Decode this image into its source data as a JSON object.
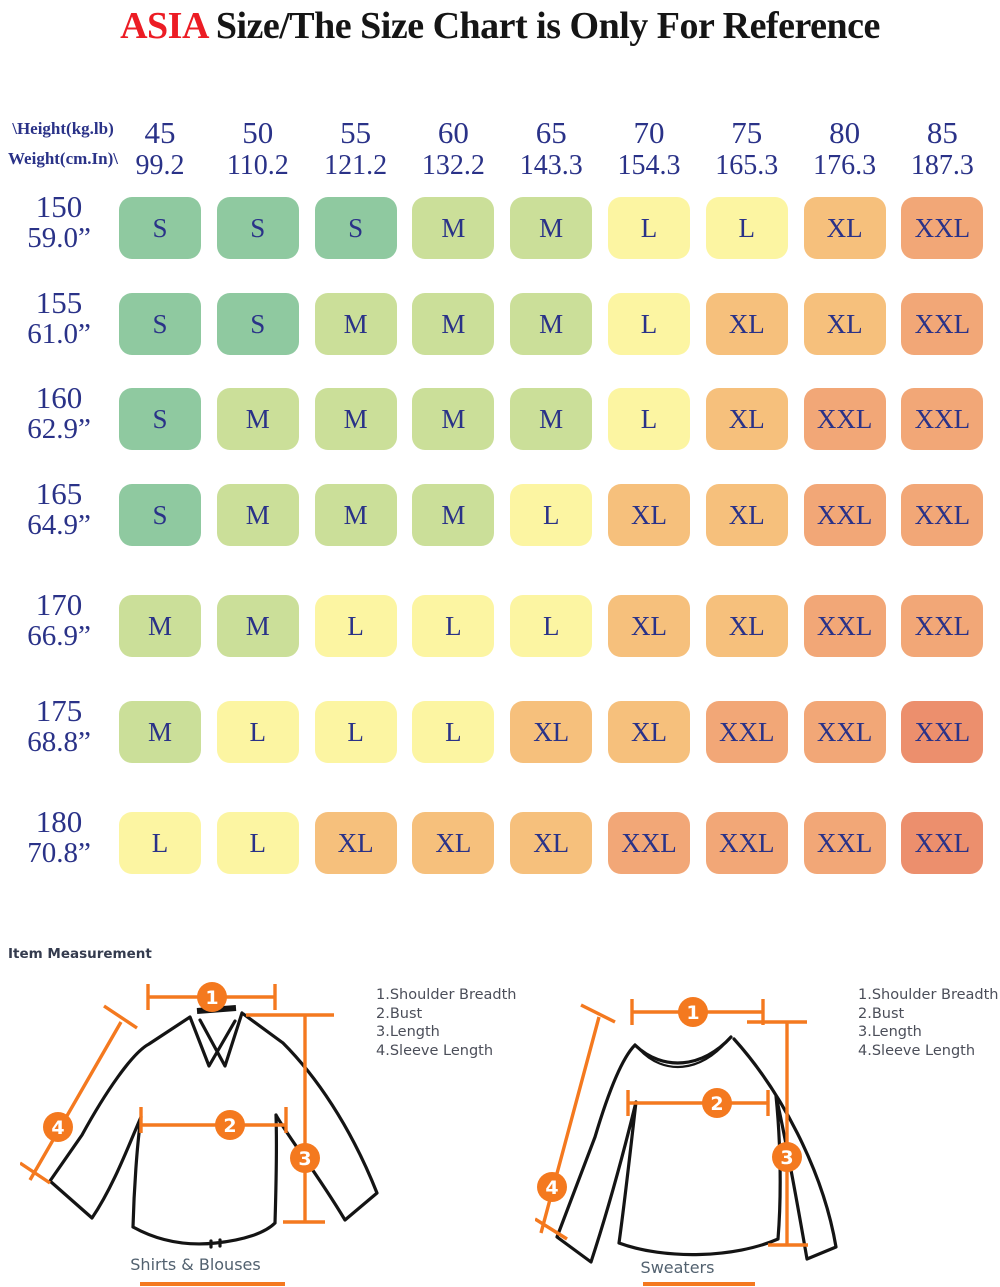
{
  "title": {
    "accent": "ASIA",
    "rest": " Size/The Size Chart is Only For Reference"
  },
  "chart_data": {
    "type": "table",
    "title": "ASIA Size/The Size Chart is Only For Reference",
    "corner_label_line1": "\\Height(kg.lb)",
    "corner_label_line2": "Weight(cm.In)\\",
    "columns": [
      {
        "kg": "45",
        "lb": "99.2"
      },
      {
        "kg": "50",
        "lb": "110.2"
      },
      {
        "kg": "55",
        "lb": "121.2"
      },
      {
        "kg": "60",
        "lb": "132.2"
      },
      {
        "kg": "65",
        "lb": "143.3"
      },
      {
        "kg": "70",
        "lb": "154.3"
      },
      {
        "kg": "75",
        "lb": "165.3"
      },
      {
        "kg": "80",
        "lb": "176.3"
      },
      {
        "kg": "85",
        "lb": "187.3"
      }
    ],
    "rows": [
      {
        "cm": "150",
        "inch": "59.0”",
        "cells": [
          [
            "S",
            "s"
          ],
          [
            "S",
            "s"
          ],
          [
            "S",
            "s"
          ],
          [
            "M",
            "m"
          ],
          [
            "M",
            "m"
          ],
          [
            "L",
            "l"
          ],
          [
            "L",
            "l"
          ],
          [
            "XL",
            "xl"
          ],
          [
            "XXL",
            "xxl"
          ]
        ]
      },
      {
        "cm": "155",
        "inch": "61.0”",
        "cells": [
          [
            "S",
            "s"
          ],
          [
            "S",
            "s"
          ],
          [
            "M",
            "m"
          ],
          [
            "M",
            "m"
          ],
          [
            "M",
            "m"
          ],
          [
            "L",
            "l"
          ],
          [
            "XL",
            "xl"
          ],
          [
            "XL",
            "xl"
          ],
          [
            "XXL",
            "xxl"
          ]
        ]
      },
      {
        "cm": "160",
        "inch": "62.9”",
        "cells": [
          [
            "S",
            "s"
          ],
          [
            "M",
            "m"
          ],
          [
            "M",
            "m"
          ],
          [
            "M",
            "m"
          ],
          [
            "M",
            "m"
          ],
          [
            "L",
            "l"
          ],
          [
            "XL",
            "xl"
          ],
          [
            "XXL",
            "xxl"
          ],
          [
            "XXL",
            "xxl"
          ]
        ]
      },
      {
        "cm": "165",
        "inch": "64.9”",
        "cells": [
          [
            "S",
            "s"
          ],
          [
            "M",
            "m"
          ],
          [
            "M",
            "m"
          ],
          [
            "M",
            "m"
          ],
          [
            "L",
            "l"
          ],
          [
            "XL",
            "xl"
          ],
          [
            "XL",
            "xl"
          ],
          [
            "XXL",
            "xxl"
          ],
          [
            "XXL",
            "xxl"
          ]
        ]
      },
      {
        "cm": "170",
        "inch": "66.9”",
        "cells": [
          [
            "M",
            "m"
          ],
          [
            "M",
            "m"
          ],
          [
            "L",
            "l"
          ],
          [
            "L",
            "l"
          ],
          [
            "L",
            "l"
          ],
          [
            "XL",
            "xl"
          ],
          [
            "XL",
            "xl"
          ],
          [
            "XXL",
            "xxl"
          ],
          [
            "XXL",
            "xxl"
          ]
        ]
      },
      {
        "cm": "175",
        "inch": "68.8”",
        "cells": [
          [
            "M",
            "m"
          ],
          [
            "L",
            "l"
          ],
          [
            "L",
            "l"
          ],
          [
            "L",
            "l"
          ],
          [
            "XL",
            "xl"
          ],
          [
            "XL",
            "xl"
          ],
          [
            "XXL",
            "xxl"
          ],
          [
            "XXL",
            "xxl"
          ],
          [
            "XXL",
            "xxl2"
          ]
        ]
      },
      {
        "cm": "180",
        "inch": "70.8”",
        "cells": [
          [
            "L",
            "l"
          ],
          [
            "L",
            "l"
          ],
          [
            "XL",
            "xl"
          ],
          [
            "XL",
            "xl"
          ],
          [
            "XL",
            "xl"
          ],
          [
            "XXL",
            "xxl"
          ],
          [
            "XXL",
            "xxl"
          ],
          [
            "XXL",
            "xxl"
          ],
          [
            "XXL",
            "xxl2"
          ]
        ]
      }
    ],
    "palette": {
      "s": "#8fc9a0",
      "m": "#cbdf99",
      "l": "#fcf5a2",
      "xl": "#f6c07c",
      "xxl": "#f2a777",
      "xxl2": "#ec8f6d"
    },
    "text_color": "#2a3288",
    "accent_red": "#ec1c24"
  },
  "measurement": {
    "heading": "Item Measurement",
    "legend": [
      "1.Shoulder Breadth",
      "2.Bust",
      "3.Length",
      "4.Sleeve Length"
    ],
    "markers": [
      "1",
      "2",
      "3",
      "4"
    ],
    "diagram_labels": {
      "left": "Shirts & Blouses",
      "right": "Sweaters"
    },
    "accent_orange": "#f4791f"
  }
}
